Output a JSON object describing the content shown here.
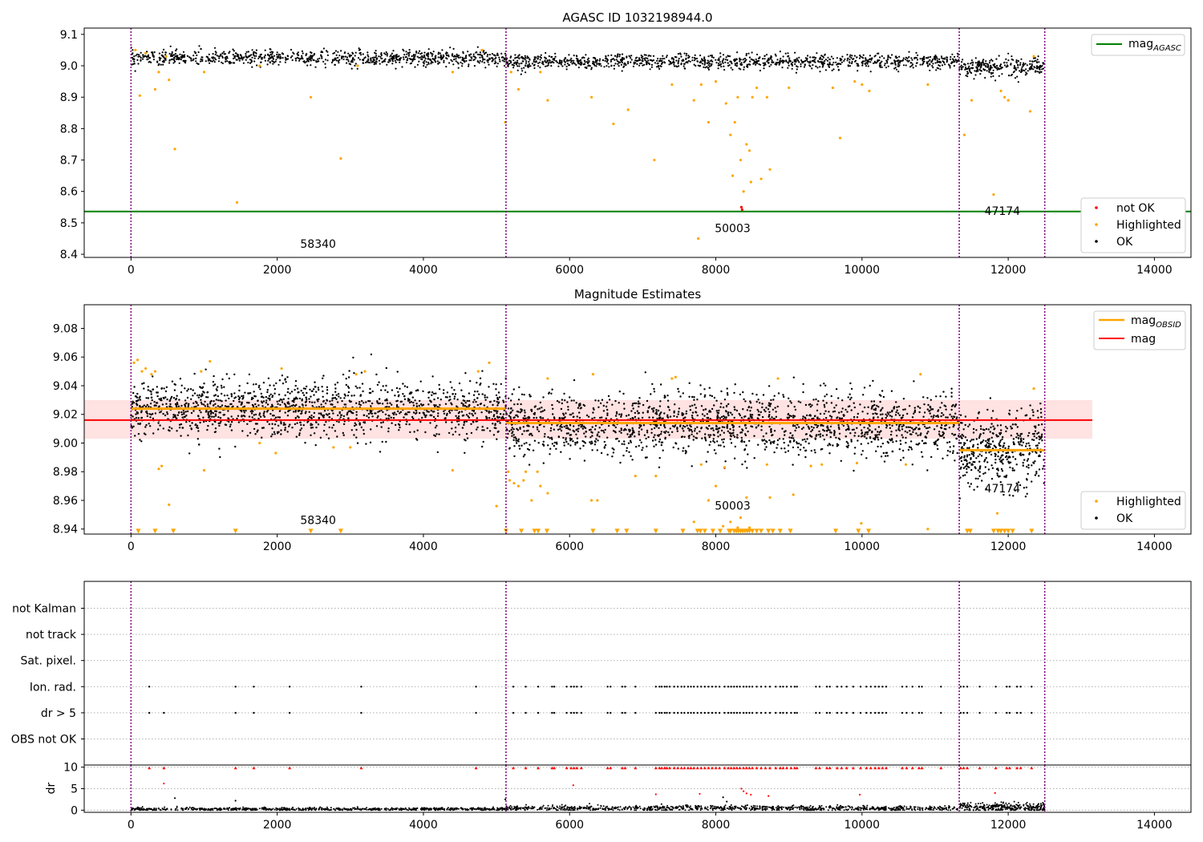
{
  "colors": {
    "ok": "#000000",
    "highlighted": "#FFA500",
    "not_ok": "#FF0000",
    "mag_agasc_line": "#008000",
    "mag_line": "#FF0000",
    "mag_obsid_line": "#FFA500",
    "band": "#FFB6B6",
    "obs_boundary": "#800080",
    "grid": "#B0B0B0"
  },
  "chart_data": [
    {
      "type": "scatter",
      "title": "AGASC ID 1032198944.0",
      "xlim": [
        -640,
        14500
      ],
      "ylim": [
        8.39,
        9.12
      ],
      "xticks": [
        0,
        2000,
        4000,
        6000,
        8000,
        10000,
        12000,
        14000
      ],
      "xtick_labels": [
        "0",
        "2000",
        "4000",
        "6000",
        "8000",
        "10000",
        "12000",
        "14000"
      ],
      "yticks": [
        8.4,
        8.5,
        8.6,
        8.7,
        8.8,
        8.9,
        9.0,
        9.1
      ],
      "ytick_labels": [
        "8.4",
        "8.5",
        "8.6",
        "8.7",
        "8.8",
        "8.9",
        "9.0",
        "9.1"
      ],
      "obs_boundaries": [
        0,
        5130,
        11330,
        12500
      ],
      "obsids": [
        {
          "label": "58340",
          "x": 2560,
          "y": 8.42
        },
        {
          "label": "50003",
          "x": 8230,
          "y": 8.47
        },
        {
          "label": "47174",
          "x": 11920,
          "y": 8.525
        }
      ],
      "hlines": [
        {
          "name": "mag_AGASC",
          "y": 8.536,
          "x_range": [
            -640,
            14500
          ],
          "color_key": "mag_agasc_line"
        }
      ],
      "ok_segments": [
        {
          "x_start": 0,
          "x_end": 5130,
          "mean": 9.025,
          "spread": 0.012,
          "count": 900
        },
        {
          "x_start": 5130,
          "x_end": 11330,
          "mean": 9.013,
          "spread": 0.012,
          "count": 1100
        },
        {
          "x_start": 11330,
          "x_end": 12500,
          "mean": 8.995,
          "spread": 0.014,
          "count": 260
        }
      ],
      "highlighted_points": [
        [
          60,
          9.05
        ],
        [
          120,
          8.905
        ],
        [
          200,
          9.04
        ],
        [
          330,
          8.925
        ],
        [
          380,
          8.98
        ],
        [
          480,
          9.03
        ],
        [
          520,
          8.955
        ],
        [
          600,
          8.735
        ],
        [
          1000,
          8.98
        ],
        [
          1450,
          8.565
        ],
        [
          1760,
          9.0
        ],
        [
          2460,
          8.9
        ],
        [
          2870,
          8.705
        ],
        [
          3100,
          9.0
        ],
        [
          4400,
          8.98
        ],
        [
          4800,
          9.05
        ],
        [
          5120,
          8.82
        ],
        [
          5200,
          8.98
        ],
        [
          5300,
          8.925
        ],
        [
          5600,
          8.98
        ],
        [
          5700,
          8.89
        ],
        [
          6300,
          8.9
        ],
        [
          6600,
          8.815
        ],
        [
          6800,
          8.86
        ],
        [
          7160,
          8.7
        ],
        [
          7400,
          8.94
        ],
        [
          7700,
          8.89
        ],
        [
          7760,
          8.45
        ],
        [
          7800,
          8.94
        ],
        [
          7900,
          8.82
        ],
        [
          8000,
          8.95
        ],
        [
          8140,
          8.88
        ],
        [
          8200,
          8.78
        ],
        [
          8230,
          8.65
        ],
        [
          8260,
          8.82
        ],
        [
          8300,
          8.9
        ],
        [
          8340,
          8.7
        ],
        [
          8380,
          8.6
        ],
        [
          8420,
          8.75
        ],
        [
          8460,
          8.73
        ],
        [
          8480,
          8.63
        ],
        [
          8500,
          8.9
        ],
        [
          8560,
          8.93
        ],
        [
          8620,
          8.64
        ],
        [
          8700,
          8.9
        ],
        [
          8740,
          8.67
        ],
        [
          9000,
          8.93
        ],
        [
          9600,
          8.93
        ],
        [
          9700,
          8.77
        ],
        [
          9900,
          8.95
        ],
        [
          10000,
          8.94
        ],
        [
          10100,
          8.92
        ],
        [
          10900,
          8.94
        ],
        [
          11400,
          8.78
        ],
        [
          11500,
          8.89
        ],
        [
          11800,
          8.59
        ],
        [
          11900,
          8.92
        ],
        [
          11950,
          8.9
        ],
        [
          12000,
          8.89
        ],
        [
          12300,
          8.855
        ],
        [
          12350,
          9.03
        ]
      ],
      "not_ok_points": [
        [
          8350,
          8.55
        ],
        [
          8360,
          8.542
        ]
      ],
      "legend_upper": {
        "position": "upper right",
        "entries": [
          {
            "label": "mag",
            "subscript": "AGASC",
            "color_key": "mag_agasc_line",
            "kind": "line"
          }
        ]
      },
      "legend_lower": {
        "position": "lower right",
        "entries": [
          {
            "label": "not OK",
            "color_key": "not_ok",
            "kind": "marker"
          },
          {
            "label": "Highlighted",
            "color_key": "highlighted",
            "kind": "marker"
          },
          {
            "label": "OK",
            "color_key": "ok",
            "kind": "marker"
          }
        ]
      }
    },
    {
      "type": "scatter",
      "title": "Magnitude Estimates",
      "xlim": [
        -640,
        14500
      ],
      "ylim": [
        8.9365,
        9.0965
      ],
      "xticks": [
        0,
        2000,
        4000,
        6000,
        8000,
        10000,
        12000,
        14000
      ],
      "xtick_labels": [
        "0",
        "2000",
        "4000",
        "6000",
        "8000",
        "10000",
        "12000",
        "14000"
      ],
      "yticks": [
        8.94,
        8.96,
        8.98,
        9.0,
        9.02,
        9.04,
        9.06,
        9.08
      ],
      "ytick_labels": [
        "8.94",
        "8.96",
        "8.98",
        "9.00",
        "9.02",
        "9.04",
        "9.06",
        "9.08"
      ],
      "obs_boundaries": [
        0,
        5130,
        11330,
        12500
      ],
      "obsids": [
        {
          "label": "58340",
          "x": 2560,
          "y": 8.9435
        },
        {
          "label": "50003",
          "x": 8230,
          "y": 8.9535
        },
        {
          "label": "47174",
          "x": 11920,
          "y": 8.9655
        }
      ],
      "band": {
        "y_low": 9.003,
        "y_high": 9.03,
        "x_range": [
          -640,
          13150
        ]
      },
      "hlines": [
        {
          "name": "mag",
          "y": 9.016,
          "x_range": [
            -640,
            13150
          ],
          "color_key": "mag_line"
        }
      ],
      "segment_lines": [
        {
          "name": "mag_OBSID",
          "x_start": 0,
          "x_end": 5130,
          "y": 9.024
        },
        {
          "name": "mag_OBSID",
          "x_start": 5130,
          "x_end": 11330,
          "y": 9.014
        },
        {
          "name": "mag_OBSID",
          "x_start": 11330,
          "x_end": 12500,
          "y": 8.995
        }
      ],
      "ok_segments": [
        {
          "x_start": 0,
          "x_end": 5130,
          "mean": 9.024,
          "spread": 0.01,
          "count": 1400
        },
        {
          "x_start": 5130,
          "x_end": 11330,
          "mean": 9.013,
          "spread": 0.011,
          "count": 1700
        },
        {
          "x_start": 11330,
          "x_end": 12500,
          "mean": 8.995,
          "spread": 0.013,
          "count": 420
        }
      ],
      "highlighted_points": [
        [
          40,
          9.056
        ],
        [
          90,
          9.058
        ],
        [
          150,
          9.05
        ],
        [
          200,
          9.052
        ],
        [
          280,
          9.048
        ],
        [
          330,
          9.05
        ],
        [
          380,
          8.982
        ],
        [
          420,
          8.984
        ],
        [
          520,
          8.957
        ],
        [
          960,
          9.05
        ],
        [
          1000,
          8.981
        ],
        [
          1080,
          9.057
        ],
        [
          1760,
          9.0
        ],
        [
          1980,
          8.993
        ],
        [
          2060,
          9.052
        ],
        [
          2770,
          8.997
        ],
        [
          3000,
          8.997
        ],
        [
          3080,
          9.048
        ],
        [
          3200,
          9.05
        ],
        [
          4400,
          8.981
        ],
        [
          4750,
          9.05
        ],
        [
          4900,
          9.056
        ],
        [
          5000,
          8.956
        ],
        [
          5160,
          8.98
        ],
        [
          5180,
          8.974
        ],
        [
          5240,
          8.972
        ],
        [
          5300,
          8.97
        ],
        [
          5370,
          8.974
        ],
        [
          5400,
          8.98
        ],
        [
          5480,
          8.96
        ],
        [
          5560,
          8.98
        ],
        [
          5600,
          8.97
        ],
        [
          5700,
          8.965
        ],
        [
          5700,
          9.045
        ],
        [
          6300,
          8.96
        ],
        [
          6320,
          9.048
        ],
        [
          6380,
          8.96
        ],
        [
          6900,
          8.977
        ],
        [
          7180,
          8.977
        ],
        [
          7400,
          9.045
        ],
        [
          7450,
          9.046
        ],
        [
          7700,
          8.945
        ],
        [
          7800,
          8.985
        ],
        [
          7900,
          8.96
        ],
        [
          8000,
          8.97
        ],
        [
          8100,
          8.942
        ],
        [
          8120,
          8.983
        ],
        [
          8200,
          8.945
        ],
        [
          8300,
          8.941
        ],
        [
          8340,
          8.948
        ],
        [
          8420,
          8.962
        ],
        [
          8460,
          8.941
        ],
        [
          8700,
          8.985
        ],
        [
          8740,
          8.962
        ],
        [
          8850,
          9.045
        ],
        [
          9060,
          8.964
        ],
        [
          9300,
          8.984
        ],
        [
          9450,
          8.985
        ],
        [
          9930,
          8.986
        ],
        [
          9990,
          8.944
        ],
        [
          10600,
          8.985
        ],
        [
          10800,
          9.048
        ],
        [
          10900,
          8.94
        ],
        [
          11850,
          8.951
        ],
        [
          12350,
          9.038
        ]
      ],
      "floor_markers_y": 8.9385,
      "floor_markers_x": [
        100,
        330,
        580,
        1430,
        2460,
        2870,
        5130,
        5340,
        5520,
        5570,
        5690,
        6320,
        6650,
        6780,
        7180,
        7550,
        7750,
        7790,
        7850,
        7960,
        8060,
        8180,
        8200,
        8250,
        8280,
        8310,
        8340,
        8370,
        8400,
        8430,
        8460,
        8500,
        8560,
        8620,
        8720,
        8780,
        8880,
        9020,
        9640,
        9950,
        10090,
        11440,
        11480,
        11800,
        11860,
        11900,
        11950,
        12000,
        12060,
        12320
      ],
      "legend_upper": {
        "position": "upper right",
        "entries": [
          {
            "label": "mag",
            "subscript": "OBSID",
            "color_key": "mag_obsid_line",
            "kind": "line"
          },
          {
            "label": "mag",
            "subscript": "",
            "color_key": "mag_line",
            "kind": "line"
          }
        ]
      },
      "legend_lower": {
        "position": "lower right",
        "entries": [
          {
            "label": "Highlighted",
            "color_key": "highlighted",
            "kind": "marker"
          },
          {
            "label": "OK",
            "color_key": "ok",
            "kind": "marker"
          }
        ]
      }
    },
    {
      "type": "scatter",
      "title": "",
      "xlim": [
        -640,
        14500
      ],
      "categories": [
        "OBS not OK",
        "dr > 5",
        "Ion. rad.",
        "Sat. pixel.",
        "not track",
        "not Kalman"
      ],
      "obs_boundaries": [
        0,
        5130,
        11330,
        12500
      ],
      "ion_rad_x": [
        250,
        1430,
        1680,
        2170,
        3150,
        4720,
        5230,
        5400,
        5570,
        5760,
        5790,
        5960,
        6020,
        6060,
        6100,
        6160,
        6520,
        6560,
        6720,
        6760,
        6900,
        7180,
        7230,
        7260,
        7300,
        7330,
        7370,
        7430,
        7480,
        7530,
        7570,
        7620,
        7660,
        7700,
        7750,
        7800,
        7850,
        7900,
        7950,
        8000,
        8050,
        8120,
        8170,
        8210,
        8250,
        8290,
        8330,
        8380,
        8420,
        8460,
        8500,
        8560,
        8620,
        8680,
        8740,
        8820,
        8880,
        8920,
        8970,
        9030,
        9080,
        9110,
        9370,
        9420,
        9520,
        9560,
        9660,
        9720,
        9790,
        9880,
        9980,
        10060,
        10120,
        10180,
        10230,
        10280,
        10330,
        10550,
        10610,
        10690,
        10780,
        10820,
        11080,
        11350,
        11390,
        11440,
        11610,
        11830,
        11980,
        12020,
        12120,
        12170,
        12320
      ],
      "dr_gt5_x": [
        250,
        450,
        1430,
        1680,
        2170,
        3150,
        4720,
        5230,
        5400,
        5570,
        5760,
        5790,
        5960,
        6020,
        6060,
        6100,
        6160,
        6520,
        6560,
        6720,
        6760,
        6900,
        7180,
        7230,
        7260,
        7300,
        7330,
        7370,
        7430,
        7480,
        7530,
        7570,
        7620,
        7660,
        7700,
        7750,
        7800,
        7850,
        7900,
        7950,
        8000,
        8050,
        8120,
        8170,
        8210,
        8250,
        8290,
        8330,
        8380,
        8420,
        8460,
        8500,
        8560,
        8620,
        8680,
        8740,
        8820,
        8880,
        8920,
        8970,
        9030,
        9080,
        9110,
        9370,
        9420,
        9520,
        9560,
        9660,
        9720,
        9790,
        9880,
        9980,
        10060,
        10120,
        10180,
        10230,
        10280,
        10330,
        10550,
        10610,
        10690,
        10780,
        10820,
        11080,
        11350,
        11390,
        11440,
        11610,
        11830,
        11980,
        12020,
        12120,
        12170,
        12320
      ]
    },
    {
      "type": "scatter",
      "title": "",
      "ylabel": "dr",
      "xlim": [
        -640,
        14500
      ],
      "ylim": [
        -0.5,
        10.5
      ],
      "xticks": [
        0,
        2000,
        4000,
        6000,
        8000,
        10000,
        12000,
        14000
      ],
      "xtick_labels": [
        "0",
        "2000",
        "4000",
        "6000",
        "8000",
        "10000",
        "12000",
        "14000"
      ],
      "yticks": [
        0,
        5,
        10
      ],
      "ytick_labels": [
        "0",
        "5",
        "10"
      ],
      "obs_boundaries": [
        0,
        5130,
        11330,
        12500
      ],
      "clipped_y": 9.8,
      "medium_points": [
        [
          450,
          6.2
        ],
        [
          6050,
          5.8
        ],
        [
          7180,
          3.7
        ],
        [
          7780,
          3.8
        ],
        [
          8100,
          3.0
        ],
        [
          8150,
          2.0
        ],
        [
          8350,
          5.0
        ],
        [
          8380,
          4.4
        ],
        [
          8420,
          3.9
        ],
        [
          8480,
          3.6
        ],
        [
          8720,
          3.3
        ],
        [
          9970,
          3.6
        ],
        [
          11820,
          4.0
        ],
        [
          1430,
          2.2
        ],
        [
          600,
          2.8
        ],
        [
          5120,
          2.5
        ]
      ]
    }
  ]
}
